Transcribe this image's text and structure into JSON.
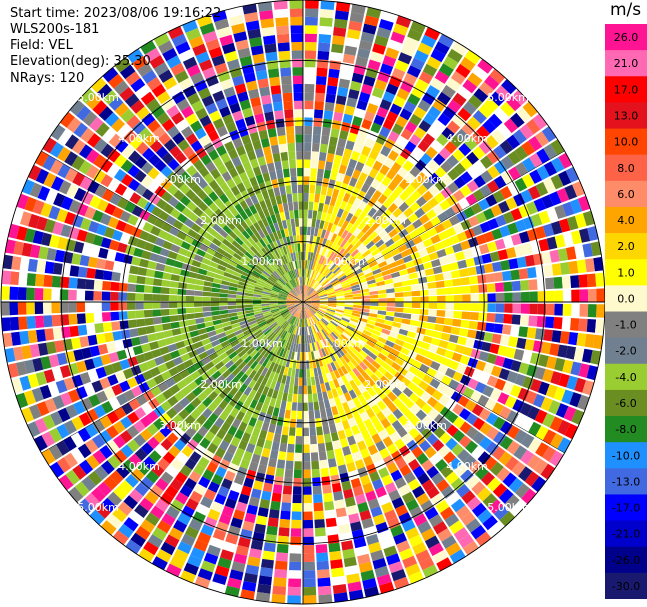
{
  "info": {
    "start_time": "Start time: 2023/08/06 19:16:22",
    "site": "WLS200s-181",
    "field": "Field: VEL",
    "elevation": "Elevation(deg): 35.30",
    "nrays": "NRays: 120"
  },
  "chart_data": {
    "type": "heatmap",
    "projection": "polar-ppi",
    "nrays": 120,
    "range_rings": [
      "1.00km",
      "2.00km",
      "3.00km",
      "4.00km",
      "5.00km"
    ],
    "colorbar": {
      "unit": "m/s",
      "ticks": [
        "26.0",
        "21.0",
        "17.0",
        "13.0",
        "10.0",
        "8.0",
        "6.0",
        "4.0",
        "2.0",
        "1.0",
        "0.0",
        "-1.0",
        "-2.0",
        "-4.0",
        "-6.0",
        "-8.0",
        "-10.0",
        "-13.0",
        "-17.0",
        "-21.0",
        "-26.0",
        "-30.0"
      ],
      "colors": [
        "#ff1493",
        "#ff69b4",
        "#ff0000",
        "#e4121d",
        "#ff4500",
        "#ff6347",
        "#ff8c69",
        "#ffa500",
        "#ffd700",
        "#ffff00",
        "#fffacd",
        "#808080",
        "#708090",
        "#9acd32",
        "#6b8e23",
        "#228b22",
        "#1e90ff",
        "#4169e1",
        "#0000ff",
        "#0000cd",
        "#00008b",
        "#191970"
      ]
    }
  }
}
